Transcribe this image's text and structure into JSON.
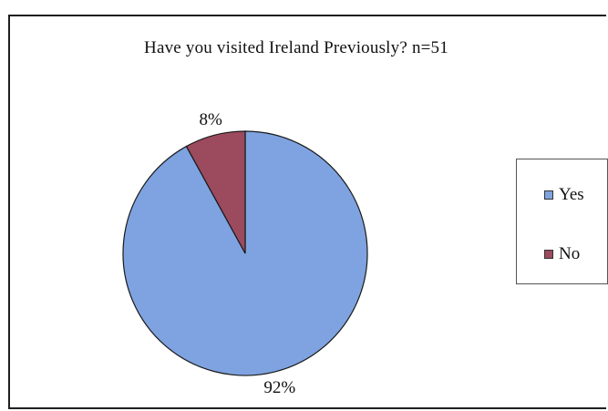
{
  "chart_data": {
    "type": "pie",
    "title": "Have you visited Ireland Previously?  n=51",
    "categories": [
      "Yes",
      "No"
    ],
    "values": [
      92,
      8
    ],
    "data_labels": [
      "92%",
      "8%"
    ],
    "colors": [
      "#7ea3e0",
      "#9c4a5e"
    ],
    "legend": {
      "placement": "right",
      "entries": [
        "Yes",
        "No"
      ]
    }
  }
}
